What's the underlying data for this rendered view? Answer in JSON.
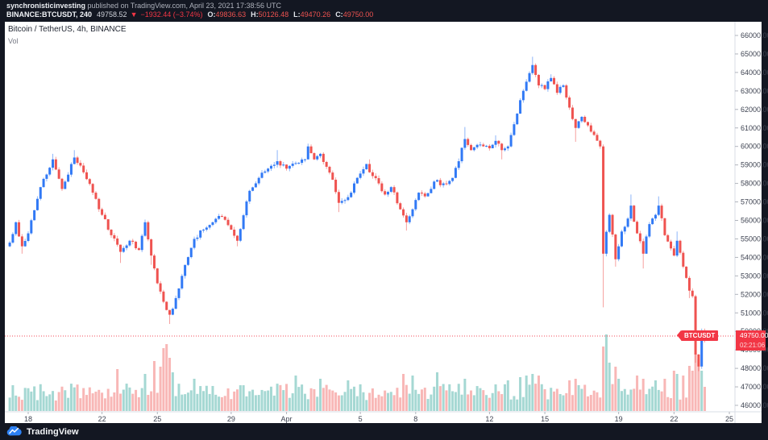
{
  "header": {
    "author": "synchronisticinvesting",
    "publish_info": " published on TradingView.com, April 23, 2021 17:38:56 UTC",
    "symbol_line": {
      "symbol": "BINANCE:BTCUSDT, 240",
      "last": "49758.52",
      "direction": "▼",
      "change": "−1932.44 (−3.74%)",
      "o_label": "O:",
      "o": "49836.63",
      "h_label": "H:",
      "h": "50126.48",
      "l_label": "L:",
      "l": "49470.26",
      "c_label": "C:",
      "c": "49750.00"
    }
  },
  "legend": {
    "title": "Bitcoin / TetherUS, 4h, BINANCE",
    "indicator": "Vol"
  },
  "price_label": {
    "badge": "BTCUSDT",
    "price": "49750.00",
    "countdown": "02:21:06"
  },
  "footer": {
    "brand": "TradingView"
  },
  "chart_data": {
    "type": "candlestick",
    "symbol": "BINANCE:BTCUSDT",
    "interval": "4h",
    "title": "Bitcoin / TetherUS, 4h, BINANCE",
    "current_price": 49750.0,
    "candles_total": 227,
    "first_open": 54600,
    "noise": 280,
    "wick_amp": 150,
    "y_axis": {
      "min": 46000,
      "max": 66000,
      "step": 1000
    },
    "x_ticks": [
      {
        "label": "18",
        "i": 6
      },
      {
        "label": "22",
        "i": 30
      },
      {
        "label": "25",
        "i": 48
      },
      {
        "label": "29",
        "i": 72
      },
      {
        "label": "Apr",
        "i": 90
      },
      {
        "label": "5",
        "i": 114
      },
      {
        "label": "8",
        "i": 132
      },
      {
        "label": "12",
        "i": 156
      },
      {
        "label": "15",
        "i": 174
      },
      {
        "label": "19",
        "i": 198
      },
      {
        "label": "22",
        "i": 216
      },
      {
        "label": "25",
        "i": 234
      }
    ],
    "anchors": [
      [
        0,
        54800
      ],
      [
        2,
        55900
      ],
      [
        4,
        54600
      ],
      [
        6,
        55300
      ],
      [
        10,
        57800
      ],
      [
        14,
        59300
      ],
      [
        17,
        57700
      ],
      [
        21,
        59400
      ],
      [
        24,
        58600
      ],
      [
        27,
        57500
      ],
      [
        30,
        56300
      ],
      [
        33,
        55200
      ],
      [
        36,
        54300
      ],
      [
        39,
        54900
      ],
      [
        42,
        54400
      ],
      [
        44,
        55900
      ],
      [
        46,
        54100
      ],
      [
        48,
        52600
      ],
      [
        50,
        51600
      ],
      [
        52,
        50900
      ],
      [
        54,
        51800
      ],
      [
        56,
        53000
      ],
      [
        60,
        55000
      ],
      [
        63,
        55500
      ],
      [
        66,
        55900
      ],
      [
        69,
        56200
      ],
      [
        72,
        55500
      ],
      [
        74,
        54900
      ],
      [
        78,
        57600
      ],
      [
        81,
        58300
      ],
      [
        84,
        58800
      ],
      [
        87,
        59200
      ],
      [
        90,
        58800
      ],
      [
        93,
        59100
      ],
      [
        96,
        59300
      ],
      [
        97,
        60000
      ],
      [
        99,
        59300
      ],
      [
        101,
        59600
      ],
      [
        103,
        58900
      ],
      [
        105,
        58200
      ],
      [
        107,
        56950
      ],
      [
        109,
        57100
      ],
      [
        111,
        57500
      ],
      [
        113,
        58300
      ],
      [
        116,
        59050
      ],
      [
        118,
        58400
      ],
      [
        120,
        58000
      ],
      [
        122,
        57400
      ],
      [
        124,
        57800
      ],
      [
        127,
        56600
      ],
      [
        129,
        55900
      ],
      [
        131,
        56600
      ],
      [
        133,
        57500
      ],
      [
        135,
        57300
      ],
      [
        138,
        58100
      ],
      [
        141,
        58000
      ],
      [
        144,
        58300
      ],
      [
        146,
        59200
      ],
      [
        148,
        60400
      ],
      [
        150,
        59800
      ],
      [
        153,
        60100
      ],
      [
        156,
        59900
      ],
      [
        158,
        60300
      ],
      [
        160,
        59800
      ],
      [
        162,
        60000
      ],
      [
        164,
        61200
      ],
      [
        166,
        62500
      ],
      [
        168,
        63500
      ],
      [
        170,
        64400
      ],
      [
        172,
        63300
      ],
      [
        174,
        63100
      ],
      [
        176,
        63700
      ],
      [
        178,
        62900
      ],
      [
        180,
        63300
      ],
      [
        182,
        62100
      ],
      [
        184,
        61000
      ],
      [
        186,
        61600
      ],
      [
        189,
        60800
      ],
      [
        192,
        60000
      ],
      [
        193,
        54200
      ],
      [
        195,
        56300
      ],
      [
        197,
        53900
      ],
      [
        199,
        55400
      ],
      [
        201,
        56100
      ],
      [
        202,
        56800
      ],
      [
        204,
        55300
      ],
      [
        206,
        54200
      ],
      [
        208,
        55800
      ],
      [
        210,
        56300
      ],
      [
        211,
        56800
      ],
      [
        213,
        55200
      ],
      [
        216,
        54100
      ],
      [
        217,
        54900
      ],
      [
        219,
        53500
      ],
      [
        221,
        52200
      ],
      [
        222,
        51900
      ],
      [
        223,
        48750
      ],
      [
        224,
        48100
      ],
      [
        225,
        49950
      ],
      [
        226,
        49750
      ]
    ],
    "wick_overrides": {
      "high": {
        "14": 59600,
        "21": 59800,
        "87": 59800,
        "97": 60150,
        "117": 59300,
        "148": 61050,
        "158": 60600,
        "170": 64850,
        "176": 63900,
        "202": 57400,
        "211": 57300,
        "217": 55400,
        "225": 50150,
        "226": 50150
      },
      "low": {
        "4": 54200,
        "36": 53700,
        "46": 53600,
        "52": 50400,
        "74": 54600,
        "107": 56450,
        "129": 55450,
        "160": 59300,
        "184": 60250,
        "193": 51300,
        "197": 53500,
        "206": 53400,
        "221": 51800,
        "223": 48300,
        "224": 47850,
        "226": 49400
      }
    },
    "volume_spikes": {
      "35": 52,
      "44": 46,
      "47": 62,
      "49": 55,
      "50": 78,
      "51": 83,
      "52": 66,
      "53": 48,
      "60": 40,
      "93": 44,
      "101": 40,
      "110": 38,
      "128": 46,
      "131": 44,
      "139": 48,
      "148": 40,
      "162": 38,
      "166": 42,
      "168": 44,
      "170": 46,
      "172": 44,
      "182": 38,
      "184": 40,
      "193": 80,
      "194": 95,
      "195": 60,
      "197": 55,
      "198": 40,
      "204": 44,
      "206": 40,
      "210": 38,
      "213": 40,
      "216": 50,
      "217": 46,
      "219": 44,
      "221": 56,
      "222": 50,
      "223": 72,
      "224": 64,
      "225": 50,
      "226": 30
    },
    "colors": {
      "background": "#131722",
      "pane": "#ffffff",
      "up": "#3179f5",
      "down": "#ef5350",
      "vol_up": "rgba(56,169,157,0.45)",
      "vol_down": "rgba(239,83,80,0.42)",
      "last_price": "#f23645",
      "axis_text": "#3e4351",
      "axis_line": "#d8dce5",
      "tick": "#b0b4bc"
    }
  }
}
